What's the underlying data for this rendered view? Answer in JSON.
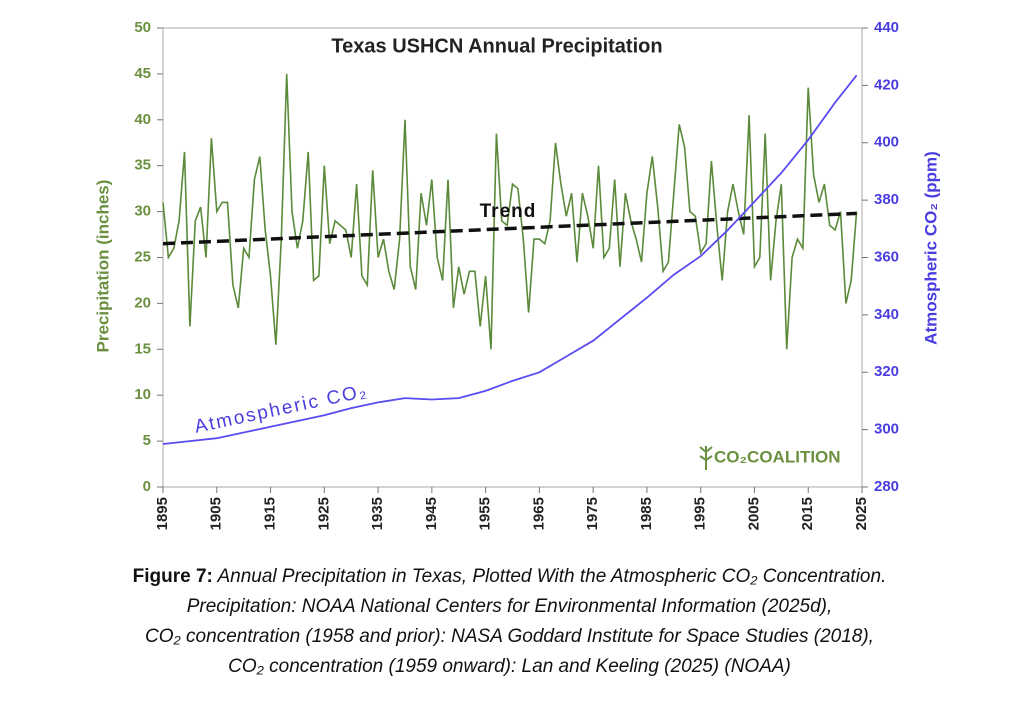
{
  "chart_data": {
    "type": "line",
    "title": "Texas USHCN Annual Precipitation",
    "y_label": "Precipitation (inches)",
    "y2_label": "Atmospheric CO₂ (ppm)",
    "logo": "CO₂COALITION",
    "xlim": [
      1895,
      2025
    ],
    "xticks": [
      1895,
      1905,
      1915,
      1925,
      1935,
      1945,
      1955,
      1965,
      1975,
      1985,
      1995,
      2005,
      2015,
      2025
    ],
    "ylim": [
      0,
      50
    ],
    "yticks": [
      0,
      5,
      10,
      15,
      20,
      25,
      30,
      35,
      40,
      45,
      50
    ],
    "y2lim": [
      280,
      440
    ],
    "y2ticks": [
      280,
      300,
      320,
      340,
      360,
      380,
      400,
      420,
      440
    ],
    "series": [
      {
        "name": "Precipitation",
        "color": "#5b8a3a",
        "x": [
          1895,
          1896,
          1897,
          1898,
          1899,
          1900,
          1901,
          1902,
          1903,
          1904,
          1905,
          1906,
          1907,
          1908,
          1909,
          1910,
          1911,
          1912,
          1913,
          1914,
          1915,
          1916,
          1917,
          1918,
          1919,
          1920,
          1921,
          1922,
          1923,
          1924,
          1925,
          1926,
          1927,
          1928,
          1929,
          1930,
          1931,
          1932,
          1933,
          1934,
          1935,
          1936,
          1937,
          1938,
          1939,
          1940,
          1941,
          1942,
          1943,
          1944,
          1945,
          1946,
          1947,
          1948,
          1949,
          1950,
          1951,
          1952,
          1953,
          1954,
          1955,
          1956,
          1957,
          1958,
          1959,
          1960,
          1961,
          1962,
          1963,
          1964,
          1965,
          1966,
          1967,
          1968,
          1969,
          1970,
          1971,
          1972,
          1973,
          1974,
          1975,
          1976,
          1977,
          1978,
          1979,
          1980,
          1981,
          1982,
          1983,
          1984,
          1985,
          1986,
          1987,
          1988,
          1989,
          1990,
          1991,
          1992,
          1993,
          1994,
          1995,
          1996,
          1997,
          1998,
          1999,
          2000,
          2001,
          2002,
          2003,
          2004,
          2005,
          2006,
          2007,
          2008,
          2009,
          2010,
          2011,
          2012,
          2013,
          2014,
          2015,
          2016,
          2017,
          2018,
          2019,
          2020,
          2021,
          2022,
          2023,
          2024
        ],
        "values": [
          31,
          25,
          26,
          29,
          36.5,
          17.5,
          29,
          30.5,
          25,
          38,
          30,
          31,
          31,
          22,
          19.5,
          26,
          25,
          33.5,
          36,
          28,
          23,
          15.5,
          27,
          45,
          30,
          26,
          29,
          36.5,
          22.5,
          23,
          35,
          26.5,
          29,
          28.5,
          28,
          25,
          33,
          23,
          22,
          34.5,
          25,
          27,
          23.5,
          21.5,
          27,
          40,
          24,
          21.5,
          32,
          28.5,
          33.5,
          25,
          22.5,
          33.5,
          19.5,
          24,
          21,
          23.5,
          23.5,
          17.5,
          23,
          15,
          38.5,
          29,
          28.5,
          33,
          32.5,
          27,
          19,
          27,
          27,
          26.5,
          29,
          37.5,
          33,
          29.5,
          32,
          24.5,
          32,
          29.5,
          26,
          35,
          25,
          26,
          33.5,
          24,
          32,
          29,
          27,
          24.5,
          32,
          36,
          30.5,
          23.5,
          24.5,
          32,
          39.5,
          37,
          30,
          29.5,
          25.5,
          26.5,
          35.5,
          28.5,
          22.5,
          30,
          33,
          30,
          27.5,
          40.5,
          24,
          25,
          38.5,
          22.5,
          29,
          33,
          15,
          25,
          27,
          26,
          43.5,
          34,
          31,
          33,
          28.5,
          28,
          30,
          20,
          22.5,
          30
        ]
      },
      {
        "name": "Trend",
        "color": "#111111",
        "x": [
          1895,
          2024
        ],
        "values": [
          26.5,
          29.8
        ]
      },
      {
        "name": "Atmospheric CO₂",
        "color": "#5a4cf2",
        "axis": "y2",
        "x": [
          1895,
          1900,
          1905,
          1910,
          1915,
          1920,
          1925,
          1930,
          1935,
          1940,
          1945,
          1950,
          1955,
          1960,
          1965,
          1970,
          1975,
          1980,
          1985,
          1990,
          1995,
          2000,
          2005,
          2010,
          2015,
          2020,
          2024
        ],
        "values": [
          295,
          296,
          297,
          299,
          301,
          303,
          305,
          307.5,
          309.5,
          311,
          310.5,
          311,
          313.5,
          317,
          320,
          325.5,
          331,
          338.5,
          346,
          354,
          360.5,
          369.5,
          379.5,
          389.5,
          401,
          414,
          423.5
        ]
      }
    ]
  },
  "caption": {
    "label": "Figure 7:",
    "lines": [
      "Annual Precipitation in Texas, Plotted With the Atmospheric CO₂ Concentration.",
      "Precipitation: NOAA National Centers for Environmental Information (2025d),",
      "CO₂ concentration (1958 and prior): NASA Goddard Institute for Space Studies (2018),",
      "CO₂ concentration (1959 onward): Lan and Keeling (2025) (NOAA)"
    ]
  }
}
